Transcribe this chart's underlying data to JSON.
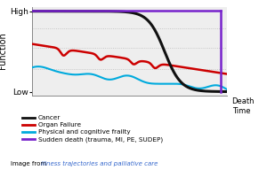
{
  "ylabel": "Function",
  "ytick_labels": [
    "Low",
    "High"
  ],
  "ytick_positions": [
    0.04,
    0.95
  ],
  "plot_bg_color": "#eeeeee",
  "grid_color": "#bbbbbb",
  "cancer_color": "#111111",
  "organ_color": "#cc0000",
  "frailty_color": "#00aadd",
  "sudden_color": "#7722cc",
  "legend_labels": [
    "Cancer",
    "Organ Failure",
    "Physical and cognitive frailty",
    "Sudden death (trauma, MI, PE, SUDEP)"
  ],
  "footer_text": "Image from ",
  "footer_link": "illness trajectories and palliative care",
  "death_label": "Death\nTime"
}
